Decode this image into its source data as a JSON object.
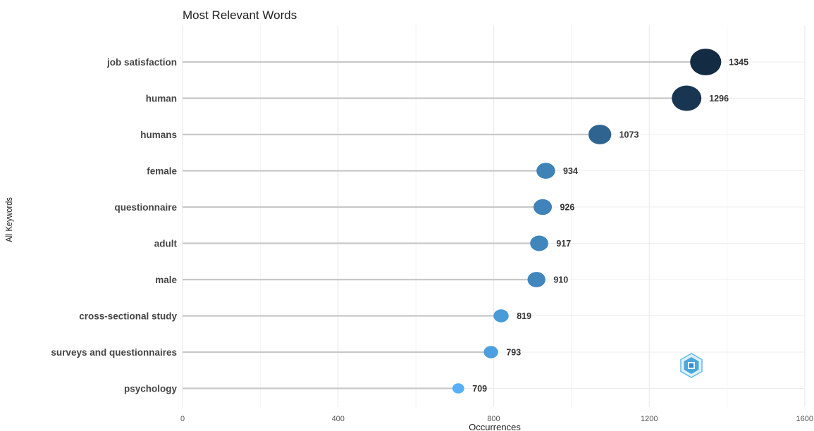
{
  "chart_data": {
    "type": "scatter",
    "title": "Most Relevant Words",
    "xlabel": "Occurrences",
    "ylabel": "All Keywords",
    "xlim": [
      0,
      1600
    ],
    "x_ticks": [
      "0",
      "400",
      "800",
      "1200",
      "1600"
    ],
    "grid": true,
    "categories": [
      "job satisfaction",
      "human",
      "humans",
      "female",
      "questionnaire",
      "adult",
      "male",
      "cross-sectional study",
      "surveys and questionnaires",
      "psychology"
    ],
    "values": [
      1345,
      1296,
      1073,
      934,
      926,
      917,
      910,
      819,
      793,
      709
    ],
    "color_scale": {
      "low": "#56b1f7",
      "high": "#132b43"
    }
  },
  "watermark_icon": "hexagon-logo-icon"
}
